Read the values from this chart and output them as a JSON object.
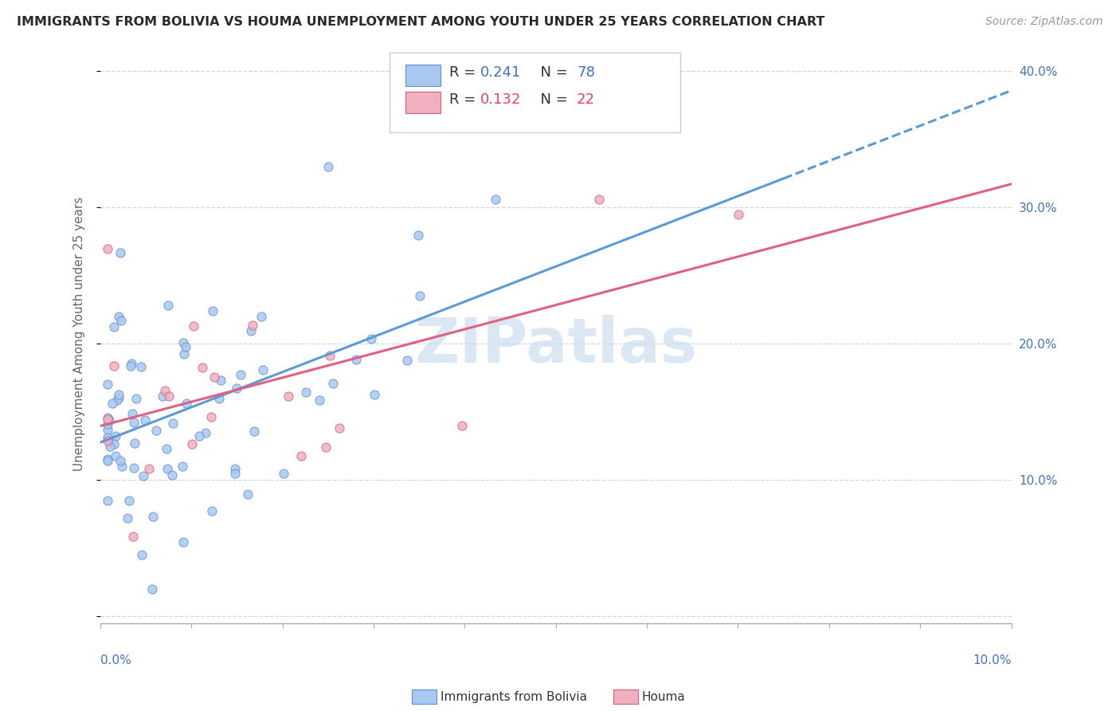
{
  "title": "IMMIGRANTS FROM BOLIVIA VS HOUMA UNEMPLOYMENT AMONG YOUTH UNDER 25 YEARS CORRELATION CHART",
  "source": "Source: ZipAtlas.com",
  "ylabel": "Unemployment Among Youth under 25 years",
  "r_bolivia": 0.241,
  "n_bolivia": 78,
  "r_houma": 0.132,
  "n_houma": 22,
  "blue_fill": "#a8c8f0",
  "blue_edge": "#6090d0",
  "blue_line": "#5b9bd5",
  "pink_fill": "#f0b0c0",
  "pink_edge": "#d06080",
  "pink_line": "#e06080",
  "blue_text": "#4472c4",
  "pink_text": "#e84070",
  "xlim": [
    0.0,
    0.1
  ],
  "ylim": [
    -0.005,
    0.42
  ],
  "ytick_vals": [
    0.0,
    0.1,
    0.2,
    0.3,
    0.4
  ],
  "watermark": "ZIPatlas",
  "watermark_color": "#c5d8ee",
  "legend_series": [
    "Immigrants from Bolivia",
    "Houma"
  ]
}
